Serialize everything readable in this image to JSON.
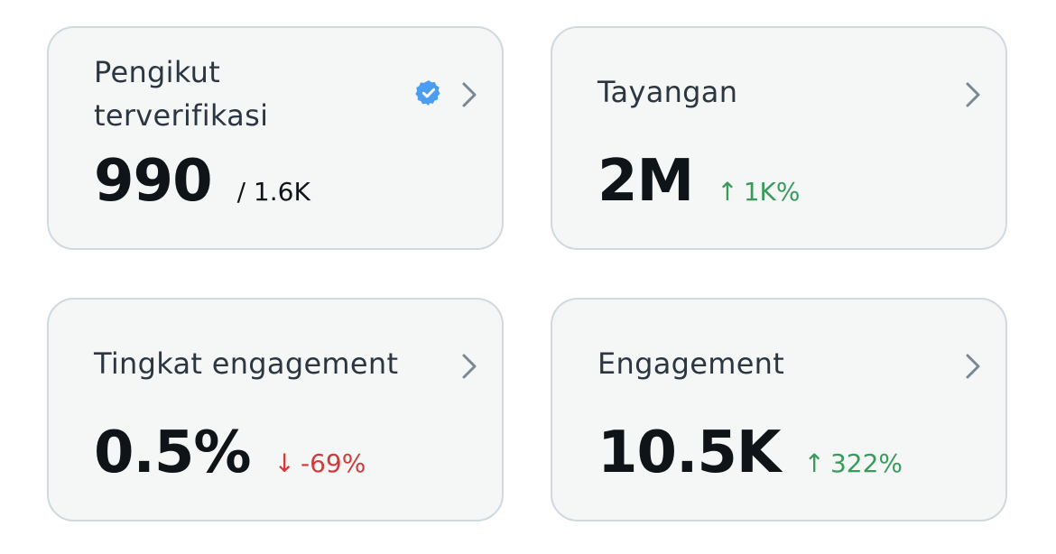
{
  "colors": {
    "card_bg": "#f5f7f7",
    "card_border": "#cfd9de",
    "text_primary": "#0f1419",
    "text_title": "#2b3640",
    "positive": "#3a9a5d",
    "negative": "#d03a3a",
    "verified": "#4a9df0"
  },
  "cards": [
    {
      "title_line1": "Pengikut",
      "title_line2": "terverifikasi",
      "value": "990",
      "secondary": "/ 1.6K",
      "icon": "verified-badge-icon"
    },
    {
      "title": "Tayangan",
      "value": "2M",
      "delta_arrow": "↑",
      "delta": "1K%",
      "trend": "up"
    },
    {
      "title": "Tingkat engagement",
      "value": "0.5%",
      "delta_arrow": "↓",
      "delta": "-69%",
      "trend": "down"
    },
    {
      "title": "Engagement",
      "value": "10.5K",
      "delta_arrow": "↑",
      "delta": "322%",
      "trend": "up"
    }
  ]
}
